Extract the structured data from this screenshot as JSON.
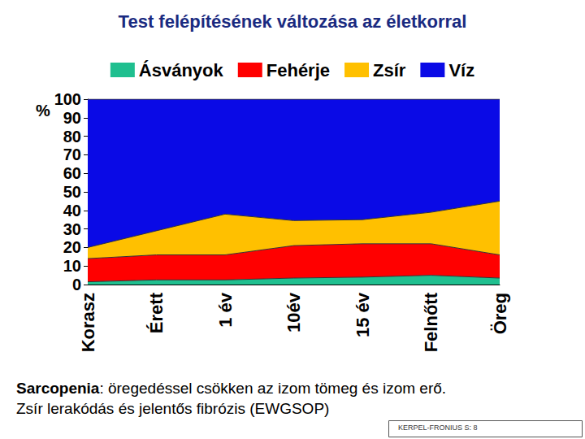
{
  "chart_data": {
    "type": "area",
    "title": "Test felépítésének változása az életkorral",
    "y_label": "%",
    "categories": [
      "Korasz",
      "Érett",
      "1 év",
      "10év",
      "15 év",
      "Felnőtt",
      "Öreg"
    ],
    "series": [
      {
        "name": "Ásványok",
        "color": "#1fbf8f",
        "values": [
          1.5,
          2.5,
          2.5,
          3.5,
          4,
          5,
          3.5
        ]
      },
      {
        "name": "Fehérje",
        "color": "#ff0000",
        "values": [
          12.5,
          13.5,
          13.5,
          17.5,
          18,
          17,
          12.5
        ]
      },
      {
        "name": "Zsír",
        "color": "#ffc000",
        "values": [
          6,
          13,
          22,
          13.5,
          13,
          17,
          29
        ]
      },
      {
        "name": "Víz",
        "color": "#0a0ae6",
        "values": [
          80,
          71,
          62,
          65.5,
          65,
          61,
          55
        ]
      }
    ],
    "stacked": true,
    "ylim": [
      0,
      100
    ],
    "yticks": [
      0,
      10,
      20,
      30,
      40,
      50,
      60,
      70,
      80,
      90,
      100
    ],
    "grid": false,
    "legend": "top",
    "annotations": [
      "Sarcopenia: öregedéssel csökken az izom tömeg és izom erő.",
      "Zsír lerakódás és jelentős fibrózis (EWGSOP)"
    ],
    "source": "KERPEL-FRONIUS S: 8"
  }
}
